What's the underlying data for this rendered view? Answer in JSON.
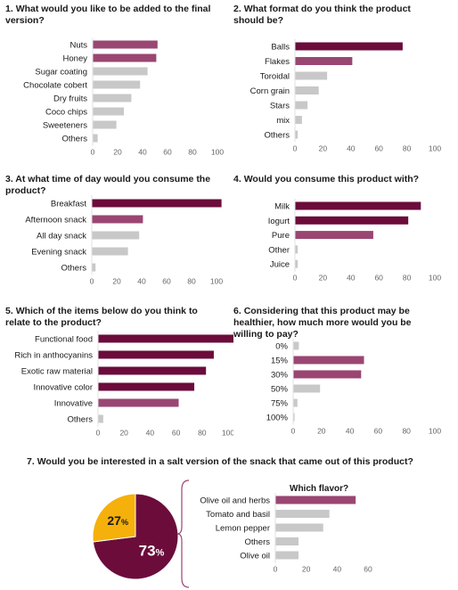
{
  "colors": {
    "dark": "#6b0c3b",
    "medium": "#9a4672",
    "gray": "#c8c8c8",
    "pie_main": "#6b0c3b",
    "pie_secondary": "#f5b00c",
    "axis_text": "#666666"
  },
  "chart_data": [
    {
      "id": "q1",
      "type": "bar",
      "orientation": "horizontal",
      "title_num": "1.",
      "title": "What would you like to be added to the final version?",
      "categories": [
        "Nuts",
        "Honey",
        "Sugar coating",
        "Chocolate cobert",
        "Dry fruits",
        "Coco chips",
        "Sweeteners",
        "Others"
      ],
      "values": [
        52,
        51,
        44,
        38,
        31,
        25,
        19,
        4
      ],
      "colors": [
        "medium",
        "medium",
        "gray",
        "gray",
        "gray",
        "gray",
        "gray",
        "gray"
      ],
      "xlim": [
        0,
        100
      ],
      "ticks": [
        0,
        20,
        40,
        60,
        80,
        100
      ]
    },
    {
      "id": "q2",
      "type": "bar",
      "orientation": "horizontal",
      "title_num": "2.",
      "title": "What format do you think the product should be?",
      "categories": [
        "Balls",
        "Flakes",
        "Toroidal",
        "Corn grain",
        "Stars",
        "mix",
        "Others"
      ],
      "values": [
        77,
        41,
        23,
        17,
        9,
        5,
        2
      ],
      "colors": [
        "dark",
        "medium",
        "gray",
        "gray",
        "gray",
        "gray",
        "gray"
      ],
      "xlim": [
        0,
        100
      ],
      "ticks": [
        0,
        20,
        40,
        60,
        80,
        100
      ]
    },
    {
      "id": "q3",
      "type": "bar",
      "orientation": "horizontal",
      "title_num": "3.",
      "title": "At what time of day would you consume the product?",
      "categories": [
        "Breakfast",
        "Afternoon snack",
        "All day snack",
        "Evening snack",
        "Others"
      ],
      "values": [
        104,
        41,
        38,
        29,
        3
      ],
      "colors": [
        "dark",
        "medium",
        "gray",
        "gray",
        "gray"
      ],
      "xlim": [
        0,
        100
      ],
      "ticks": [
        0,
        20,
        40,
        60,
        80,
        100
      ]
    },
    {
      "id": "q4",
      "type": "bar",
      "orientation": "horizontal",
      "title_num": "4.",
      "title": "Would you consume this product with?",
      "categories": [
        "Milk",
        "Iogurt",
        "Pure",
        "Other",
        "Juice"
      ],
      "values": [
        90,
        81,
        56,
        2,
        2
      ],
      "colors": [
        "dark",
        "dark",
        "medium",
        "gray",
        "gray"
      ],
      "xlim": [
        0,
        100
      ],
      "ticks": [
        0,
        20,
        40,
        60,
        80,
        100
      ]
    },
    {
      "id": "q5",
      "type": "bar",
      "orientation": "horizontal",
      "title_num": "5.",
      "title": "Which of the items below do you think to relate to the product?",
      "categories": [
        "Functional food",
        "Rich in anthocyanins",
        "Exotic raw material",
        "Innovative color",
        "Innovative",
        "Others"
      ],
      "values": [
        105,
        89,
        83,
        74,
        62,
        4
      ],
      "colors": [
        "dark",
        "dark",
        "dark",
        "dark",
        "medium",
        "gray"
      ],
      "xlim": [
        0,
        100
      ],
      "ticks": [
        0,
        20,
        40,
        60,
        80,
        100
      ]
    },
    {
      "id": "q6",
      "type": "bar",
      "orientation": "horizontal",
      "title_num": "6.",
      "title": "Considering that this product may be healthier, how much more would you be willing to pay?",
      "categories": [
        "0%",
        "15%",
        "30%",
        "50%",
        "75%",
        "100%"
      ],
      "values": [
        4,
        50,
        48,
        19,
        3,
        1
      ],
      "colors": [
        "gray",
        "medium",
        "medium",
        "gray",
        "gray",
        "gray"
      ],
      "xlim": [
        0,
        100
      ],
      "ticks": [
        0,
        20,
        40,
        60,
        80,
        100
      ]
    },
    {
      "id": "q7_pie",
      "type": "pie",
      "title_num": "7.",
      "title": "Would you be interested in a salt version of the snack that came out of this product?",
      "slices": [
        {
          "value": 73,
          "label": "73",
          "color": "pie_main"
        },
        {
          "value": 27,
          "label": "27",
          "color": "pie_secondary"
        }
      ],
      "unit": "%"
    },
    {
      "id": "q7_flavor",
      "type": "bar",
      "orientation": "horizontal",
      "title": "Which flavor?",
      "categories": [
        "Olive oil and herbs",
        "Tomato and basil",
        "Lemon pepper",
        "Others",
        "Olive oil"
      ],
      "values": [
        52,
        35,
        31,
        15,
        15
      ],
      "colors": [
        "medium",
        "gray",
        "gray",
        "gray",
        "gray"
      ],
      "xlim": [
        0,
        60
      ],
      "ticks": [
        0,
        20,
        40,
        60
      ]
    }
  ]
}
